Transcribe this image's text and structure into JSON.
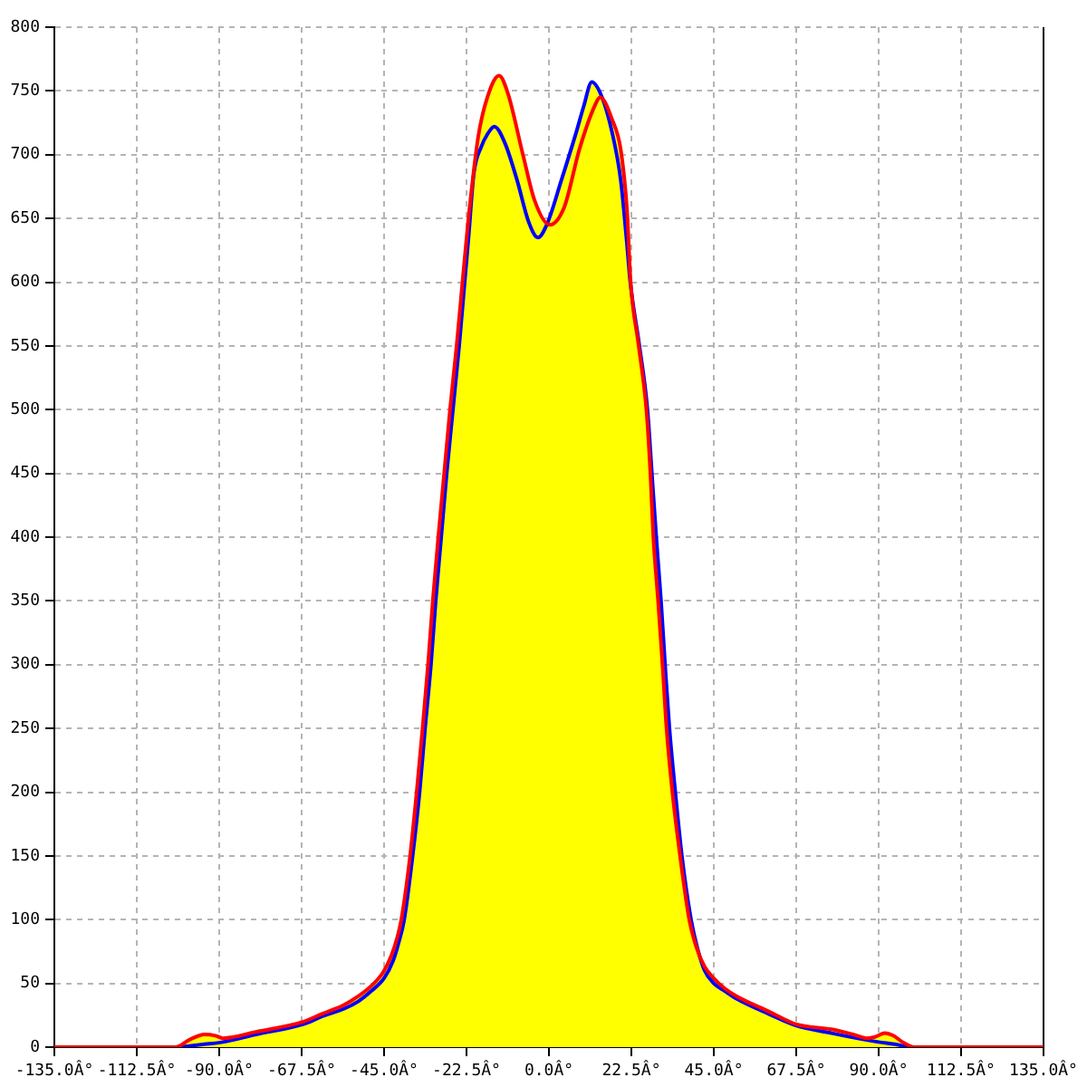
{
  "chart_data": {
    "type": "line",
    "xlim": [
      -135,
      135
    ],
    "xticks": [
      {
        "value": -135,
        "label": "-135.0Â°"
      },
      {
        "value": -112.5,
        "label": "-112.5Â°"
      },
      {
        "value": -90,
        "label": "-90.0Â°"
      },
      {
        "value": -67.5,
        "label": "-67.5Â°"
      },
      {
        "value": -45,
        "label": "-45.0Â°"
      },
      {
        "value": -22.5,
        "label": "-22.5Â°"
      },
      {
        "value": 0,
        "label": "0.0Â°"
      },
      {
        "value": 22.5,
        "label": "22.5Â°"
      },
      {
        "value": 45,
        "label": "45.0Â°"
      },
      {
        "value": 67.5,
        "label": "67.5Â°"
      },
      {
        "value": 90,
        "label": "90.0Â°"
      },
      {
        "value": 112.5,
        "label": "112.5Â°"
      },
      {
        "value": 135,
        "label": "135.0Â°"
      }
    ],
    "ylim": [
      0,
      800
    ],
    "yticks": [
      0,
      50,
      100,
      150,
      200,
      250,
      300,
      350,
      400,
      450,
      500,
      550,
      600,
      650,
      700,
      750,
      800
    ],
    "grid": true,
    "series": [
      {
        "color": "#0000ff",
        "x": [
          -100.5,
          -95,
          -89,
          -80,
          -67,
          -62,
          -56,
          -52,
          -48.5,
          -45,
          -42.5,
          -41,
          -39.5,
          -37.2,
          -35.3,
          -33.8,
          -32.2,
          -30.9,
          -29.4,
          -27.9,
          -26.2,
          -24.5,
          -23,
          -22,
          -20.5,
          -18.5,
          -16.8,
          -14.9,
          -12,
          -8.7,
          -5.5,
          -3,
          -0.6,
          3.4,
          7.5,
          9.5,
          11.7,
          14.5,
          17.2,
          19.6,
          21.2,
          22.2,
          24.7,
          26.9,
          28.1,
          29.3,
          30.6,
          31.7,
          32.9,
          34.5,
          36.3,
          38.8,
          40.5,
          42.5,
          45,
          48,
          51.2,
          60,
          67.4,
          77.1,
          84,
          90,
          95,
          98
        ],
        "values": [
          0,
          2,
          4,
          10,
          18,
          24,
          30,
          36,
          44,
          54,
          68,
          82,
          100,
          150,
          200,
          250,
          300,
          350,
          400,
          450,
          500,
          550,
          600,
          633,
          685,
          706,
          716,
          722,
          709,
          680,
          647,
          635,
          645,
          680,
          718,
          738,
          757,
          745,
          718,
          680,
          633,
          600,
          550,
          500,
          450,
          400,
          350,
          300,
          250,
          200,
          150,
          100,
          78,
          60,
          50,
          44,
          38,
          26,
          17,
          11,
          7,
          4,
          2,
          0
        ]
      },
      {
        "color": "#ff0000",
        "x": [
          -135,
          -102,
          -98,
          -94,
          -91,
          -89,
          -80,
          -67,
          -62,
          -56,
          -52,
          -48.5,
          -45.2,
          -43,
          -41.5,
          -40.3,
          -37.9,
          -36.1,
          -34.5,
          -33,
          -31.7,
          -30.2,
          -28.6,
          -27,
          -25.2,
          -23.6,
          -21.7,
          -19.3,
          -16.8,
          -13.6,
          -11.2,
          -7.1,
          -3.9,
          0.2,
          4.2,
          8.3,
          12.3,
          14,
          17.2,
          19.6,
          21.3,
          22.3,
          24.5,
          26.6,
          27.7,
          28.5,
          29.8,
          31,
          32.1,
          33.7,
          35.8,
          38.3,
          40.3,
          42.5,
          45,
          48,
          51.2,
          60,
          67.4,
          77.1,
          83,
          86.8,
          89,
          91.7,
          94,
          96.5,
          99.7,
          135
        ],
        "values": [
          0,
          0,
          6,
          10,
          9,
          7,
          12,
          20,
          26,
          33,
          40,
          48,
          59,
          72,
          85,
          100,
          150,
          200,
          250,
          300,
          350,
          400,
          450,
          500,
          550,
          600,
          657,
          714,
          745,
          762,
          748,
          700,
          664,
          645,
          659,
          704,
          737,
          745,
          728,
          704,
          657,
          600,
          550,
          500,
          450,
          400,
          350,
          300,
          250,
          200,
          150,
          100,
          78,
          63,
          54,
          46,
          40,
          28,
          18,
          14,
          10,
          7,
          8,
          11,
          9,
          4,
          0,
          0
        ]
      }
    ]
  }
}
